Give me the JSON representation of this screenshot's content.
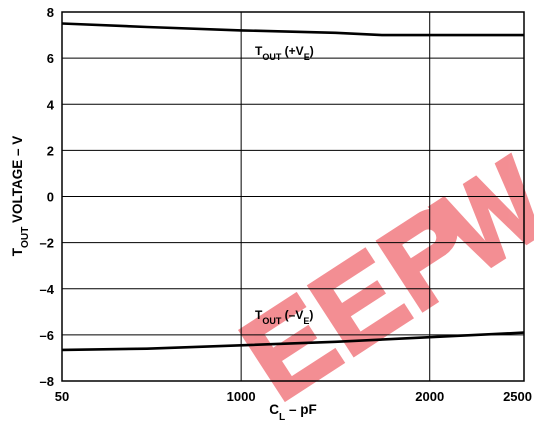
{
  "chart_data": {
    "type": "line",
    "title": "",
    "xlabel": {
      "main": "C",
      "sub": "L",
      "rest": " – pF"
    },
    "ylabel": {
      "main": "T",
      "sub": "OUT",
      "rest": " VOLTAGE – V"
    },
    "xlim": [
      50,
      2500
    ],
    "ylim": [
      -8,
      8
    ],
    "x_ticks": [
      50,
      1000,
      2000,
      2500
    ],
    "x_tick_labels": [
      "50",
      "1000",
      "2000",
      "2500"
    ],
    "y_ticks": [
      8,
      6,
      4,
      2,
      0,
      -2,
      -4,
      -6,
      -8
    ],
    "y_tick_labels": [
      "8",
      "6",
      "4",
      "2",
      "0",
      "–2",
      "–4",
      "–6",
      "–8"
    ],
    "grid": true,
    "series": [
      {
        "name": {
          "main": "T",
          "sub": "OUT",
          "mid": " (+V",
          "sub2": "E",
          "end": ")"
        },
        "x": [
          50,
          500,
          1000,
          1500,
          1750,
          2000,
          2500
        ],
        "y": [
          7.5,
          7.35,
          7.2,
          7.1,
          7.0,
          7.0,
          7.0
        ]
      },
      {
        "name": {
          "main": "T",
          "sub": "OUT",
          "mid": " (–V",
          "sub2": "E",
          "end": ")"
        },
        "x": [
          50,
          500,
          1000,
          1500,
          2000,
          2500
        ],
        "y": [
          -6.65,
          -6.6,
          -6.45,
          -6.3,
          -6.1,
          -5.9
        ]
      }
    ]
  },
  "colors": {
    "line": "#000000",
    "grid": "#000000",
    "background": "#ffffff",
    "watermark": "#e8202a"
  },
  "watermark": "EEPW"
}
